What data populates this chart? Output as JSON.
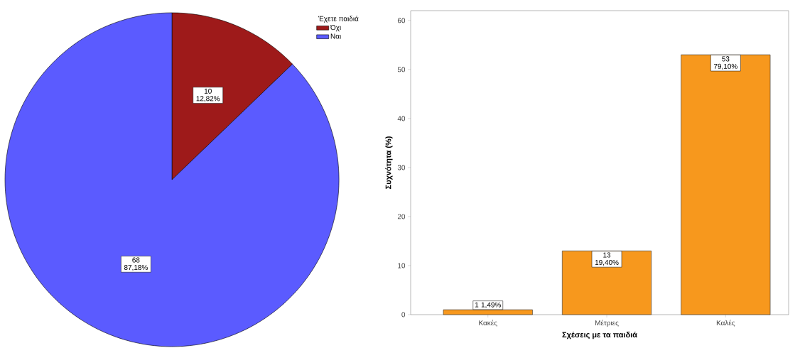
{
  "chart_data": [
    {
      "type": "pie",
      "categories": [
        "Όχι",
        "Ναι"
      ],
      "values": [
        10,
        68
      ],
      "colors": [
        "#9e1a1a",
        "#5b5bff"
      ],
      "value_labels": [
        "10 12,82%",
        "68 87,18%"
      ],
      "legend_title": "Έχετε παιδιά",
      "legend": "top right"
    },
    {
      "type": "bar",
      "categories": [
        "Κακές",
        "Μέτριες",
        "Καλές"
      ],
      "values": [
        1,
        13,
        53
      ],
      "color": "#f7981d",
      "value_labels": [
        "1 1,49%",
        "13 19,40%",
        "53 79,10%"
      ],
      "xlabel": "Σχέσεις με τα παιδιά",
      "ylabel": "Συχνότητα (%)",
      "ylim": [
        0,
        62
      ],
      "yticks": [
        0,
        10,
        20,
        30,
        40,
        50,
        60
      ]
    }
  ]
}
